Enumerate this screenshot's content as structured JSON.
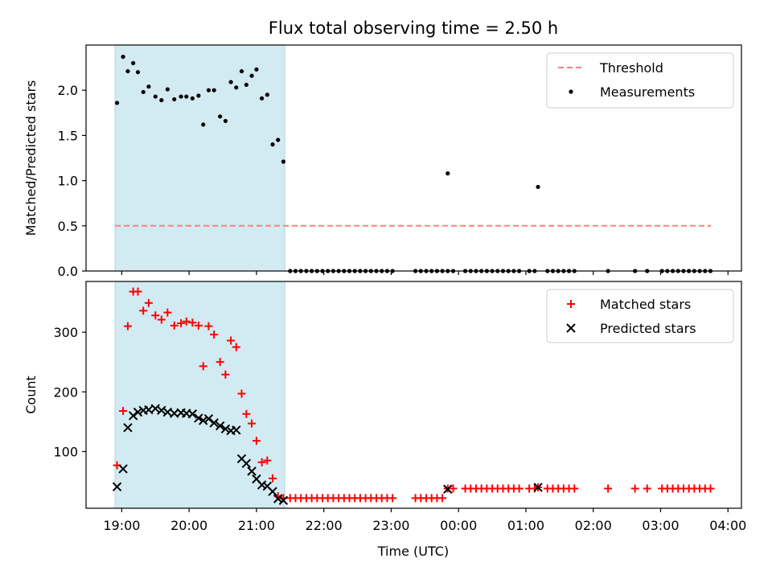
{
  "figure": {
    "title": "Flux total observing time = 2.50 h",
    "xlabel": "Time (UTC)",
    "x_unit": "hours since 19:00 UTC, continuing past midnight",
    "x_ticks": [
      {
        "t": 0,
        "label": "19:00"
      },
      {
        "t": 1,
        "label": "20:00"
      },
      {
        "t": 2,
        "label": "21:00"
      },
      {
        "t": 3,
        "label": "22:00"
      },
      {
        "t": 4,
        "label": "23:00"
      },
      {
        "t": 5,
        "label": "00:00"
      },
      {
        "t": 6,
        "label": "01:00"
      },
      {
        "t": 7,
        "label": "02:00"
      },
      {
        "t": 8,
        "label": "03:00"
      },
      {
        "t": 9,
        "label": "04:00"
      }
    ],
    "xlim": [
      -0.53,
      9.2
    ],
    "shaded_region": {
      "start": -0.1,
      "end": 2.42,
      "color": "#add8e6"
    }
  },
  "chart_data": [
    {
      "type": "scatter",
      "ylabel": "Matched/Predicted stars",
      "ylim": [
        0,
        2.5
      ],
      "y_ticks": [
        0.0,
        0.5,
        1.0,
        1.5,
        2.0
      ],
      "y_tick_labels": [
        "0.0",
        "0.5",
        "1.0",
        "1.5",
        "2.0"
      ],
      "legend_position": "top-right",
      "threshold": {
        "name": "Threshold",
        "y": 0.5,
        "x_start": -0.1,
        "x_end": 8.75,
        "color": "#ff7f7f"
      },
      "series": [
        {
          "name": "Measurements",
          "color": "#000000",
          "marker": "dot",
          "points": [
            [
              -0.07,
              1.86
            ],
            [
              0.02,
              2.37
            ],
            [
              0.09,
              2.21
            ],
            [
              0.17,
              2.3
            ],
            [
              0.24,
              2.2
            ],
            [
              0.32,
              1.98
            ],
            [
              0.4,
              2.04
            ],
            [
              0.5,
              1.93
            ],
            [
              0.59,
              1.89
            ],
            [
              0.68,
              2.01
            ],
            [
              0.78,
              1.9
            ],
            [
              0.88,
              1.93
            ],
            [
              0.96,
              1.93
            ],
            [
              1.05,
              1.91
            ],
            [
              1.14,
              1.94
            ],
            [
              1.21,
              1.62
            ],
            [
              1.29,
              2.0
            ],
            [
              1.37,
              2.0
            ],
            [
              1.46,
              1.71
            ],
            [
              1.54,
              1.66
            ],
            [
              1.62,
              2.09
            ],
            [
              1.7,
              2.03
            ],
            [
              1.78,
              2.21
            ],
            [
              1.85,
              2.06
            ],
            [
              1.93,
              2.16
            ],
            [
              2.0,
              2.23
            ],
            [
              2.08,
              1.91
            ],
            [
              2.16,
              1.95
            ],
            [
              2.24,
              1.4
            ],
            [
              2.32,
              1.45
            ],
            [
              2.4,
              1.21
            ],
            [
              2.5,
              0
            ],
            [
              2.58,
              0
            ],
            [
              2.66,
              0
            ],
            [
              2.74,
              0
            ],
            [
              2.82,
              0
            ],
            [
              2.9,
              0
            ],
            [
              2.98,
              0
            ],
            [
              3.06,
              0
            ],
            [
              3.14,
              0
            ],
            [
              3.22,
              0
            ],
            [
              3.3,
              0
            ],
            [
              3.38,
              0
            ],
            [
              3.46,
              0
            ],
            [
              3.54,
              0
            ],
            [
              3.62,
              0
            ],
            [
              3.7,
              0
            ],
            [
              3.78,
              0
            ],
            [
              3.86,
              0
            ],
            [
              3.94,
              0
            ],
            [
              4.02,
              0
            ],
            [
              4.36,
              0
            ],
            [
              4.44,
              0
            ],
            [
              4.52,
              0
            ],
            [
              4.6,
              0
            ],
            [
              4.68,
              0
            ],
            [
              4.76,
              0
            ],
            [
              4.84,
              0
            ],
            [
              4.92,
              0
            ],
            [
              5.1,
              0
            ],
            [
              5.18,
              0
            ],
            [
              5.26,
              0
            ],
            [
              5.34,
              0
            ],
            [
              5.42,
              0
            ],
            [
              5.5,
              0
            ],
            [
              5.58,
              0
            ],
            [
              5.66,
              0
            ],
            [
              5.74,
              0
            ],
            [
              5.82,
              0
            ],
            [
              5.9,
              0
            ],
            [
              6.05,
              0
            ],
            [
              6.13,
              0
            ],
            [
              6.32,
              0
            ],
            [
              6.4,
              0
            ],
            [
              6.48,
              0
            ],
            [
              6.56,
              0
            ],
            [
              6.64,
              0
            ],
            [
              6.72,
              0
            ],
            [
              7.22,
              0
            ],
            [
              7.62,
              0
            ],
            [
              7.8,
              0
            ],
            [
              8.02,
              0
            ],
            [
              8.1,
              0
            ],
            [
              8.18,
              0
            ],
            [
              8.26,
              0
            ],
            [
              8.34,
              0
            ],
            [
              8.42,
              0
            ],
            [
              8.5,
              0
            ],
            [
              8.58,
              0
            ],
            [
              8.66,
              0
            ],
            [
              8.74,
              0
            ],
            [
              4.84,
              1.08
            ],
            [
              6.18,
              0.93
            ]
          ]
        }
      ]
    },
    {
      "type": "scatter",
      "ylabel": "Count",
      "ylim": [
        5,
        385
      ],
      "y_ticks": [
        100,
        200,
        300
      ],
      "y_tick_labels": [
        "100",
        "200",
        "300"
      ],
      "legend_position": "top-right",
      "series": [
        {
          "name": "Matched stars",
          "color": "#ff0000",
          "marker": "plus",
          "points": [
            [
              -0.07,
              77
            ],
            [
              0.02,
              168
            ],
            [
              0.09,
              310
            ],
            [
              0.17,
              368
            ],
            [
              0.24,
              368
            ],
            [
              0.32,
              336
            ],
            [
              0.4,
              349
            ],
            [
              0.5,
              328
            ],
            [
              0.59,
              321
            ],
            [
              0.68,
              333
            ],
            [
              0.78,
              311
            ],
            [
              0.88,
              315
            ],
            [
              0.96,
              318
            ],
            [
              1.05,
              316
            ],
            [
              1.14,
              311
            ],
            [
              1.21,
              243
            ],
            [
              1.29,
              310
            ],
            [
              1.37,
              296
            ],
            [
              1.46,
              250
            ],
            [
              1.54,
              229
            ],
            [
              1.62,
              286
            ],
            [
              1.7,
              275
            ],
            [
              1.78,
              197
            ],
            [
              1.85,
              163
            ],
            [
              1.93,
              147
            ],
            [
              2.0,
              118
            ],
            [
              2.08,
              82
            ],
            [
              2.16,
              85
            ],
            [
              2.24,
              55
            ],
            [
              2.32,
              25
            ],
            [
              2.4,
              22
            ],
            [
              2.5,
              22
            ],
            [
              2.58,
              22
            ],
            [
              2.66,
              22
            ],
            [
              2.74,
              22
            ],
            [
              2.82,
              22
            ],
            [
              2.9,
              22
            ],
            [
              2.98,
              22
            ],
            [
              3.06,
              22
            ],
            [
              3.14,
              22
            ],
            [
              3.22,
              22
            ],
            [
              3.3,
              22
            ],
            [
              3.38,
              22
            ],
            [
              3.46,
              22
            ],
            [
              3.54,
              22
            ],
            [
              3.62,
              22
            ],
            [
              3.7,
              22
            ],
            [
              3.78,
              22
            ],
            [
              3.86,
              22
            ],
            [
              3.94,
              22
            ],
            [
              4.02,
              22
            ],
            [
              4.36,
              22
            ],
            [
              4.44,
              22
            ],
            [
              4.52,
              22
            ],
            [
              4.6,
              22
            ],
            [
              4.68,
              22
            ],
            [
              4.76,
              22
            ],
            [
              4.84,
              38
            ],
            [
              4.92,
              38
            ],
            [
              5.1,
              38
            ],
            [
              5.18,
              38
            ],
            [
              5.26,
              38
            ],
            [
              5.34,
              38
            ],
            [
              5.42,
              38
            ],
            [
              5.5,
              38
            ],
            [
              5.58,
              38
            ],
            [
              5.66,
              38
            ],
            [
              5.74,
              38
            ],
            [
              5.82,
              38
            ],
            [
              5.9,
              38
            ],
            [
              6.05,
              38
            ],
            [
              6.13,
              38
            ],
            [
              6.18,
              40
            ],
            [
              6.32,
              38
            ],
            [
              6.4,
              38
            ],
            [
              6.48,
              38
            ],
            [
              6.56,
              38
            ],
            [
              6.64,
              38
            ],
            [
              6.72,
              38
            ],
            [
              7.22,
              38
            ],
            [
              7.62,
              38
            ],
            [
              7.8,
              38
            ],
            [
              8.02,
              38
            ],
            [
              8.1,
              38
            ],
            [
              8.18,
              38
            ],
            [
              8.26,
              38
            ],
            [
              8.34,
              38
            ],
            [
              8.42,
              38
            ],
            [
              8.5,
              38
            ],
            [
              8.58,
              38
            ],
            [
              8.66,
              38
            ],
            [
              8.74,
              38
            ]
          ]
        },
        {
          "name": "Predicted stars",
          "color": "#000000",
          "marker": "x",
          "points": [
            [
              -0.07,
              41
            ],
            [
              0.02,
              71
            ],
            [
              0.09,
              140
            ],
            [
              0.17,
              160
            ],
            [
              0.24,
              166
            ],
            [
              0.32,
              169
            ],
            [
              0.4,
              170
            ],
            [
              0.5,
              172
            ],
            [
              0.59,
              169
            ],
            [
              0.68,
              166
            ],
            [
              0.78,
              164
            ],
            [
              0.88,
              165
            ],
            [
              0.96,
              164
            ],
            [
              1.05,
              163
            ],
            [
              1.14,
              156
            ],
            [
              1.21,
              152
            ],
            [
              1.29,
              155
            ],
            [
              1.37,
              148
            ],
            [
              1.46,
              143
            ],
            [
              1.54,
              138
            ],
            [
              1.62,
              135
            ],
            [
              1.7,
              136
            ],
            [
              1.78,
              88
            ],
            [
              1.85,
              80
            ],
            [
              1.93,
              67
            ],
            [
              2.0,
              54
            ],
            [
              2.08,
              44
            ],
            [
              2.16,
              42
            ],
            [
              2.24,
              33
            ],
            [
              2.32,
              21
            ],
            [
              2.4,
              18
            ],
            [
              4.84,
              37
            ],
            [
              6.18,
              40
            ]
          ]
        }
      ]
    }
  ]
}
